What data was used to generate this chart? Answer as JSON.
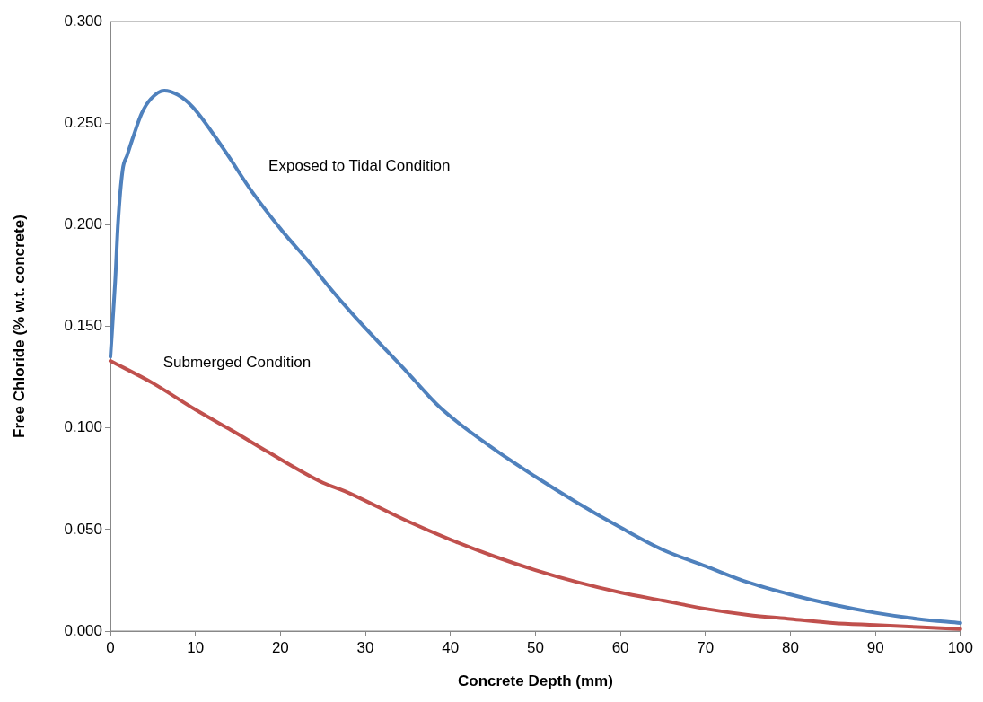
{
  "chart_data": {
    "type": "line",
    "xlabel": "Concrete Depth (mm)",
    "ylabel": "Free Chloride (% w.t. concrete)",
    "xlim": [
      0,
      100
    ],
    "xticks": [
      0,
      10,
      20,
      30,
      40,
      50,
      60,
      70,
      80,
      90,
      100
    ],
    "ylim": [
      0,
      0.3
    ],
    "yticks": [
      {
        "value": 0,
        "label": "0.000"
      },
      {
        "value": 0.05,
        "label": "0.050"
      },
      {
        "value": 0.1,
        "label": "0.100"
      },
      {
        "value": 0.15,
        "label": "0.150"
      },
      {
        "value": 0.2,
        "label": "0.200"
      },
      {
        "value": 0.25,
        "label": "0.250"
      },
      {
        "value": 0.3,
        "label": "0.300"
      }
    ],
    "grid": false,
    "legend": false,
    "marker": "none",
    "line_style": "solid",
    "series": [
      {
        "name": "Exposed to Tidal Condition",
        "color": "#4f81bd",
        "x": [
          0,
          0.56,
          0.9,
          1.44,
          1.96,
          2.66,
          3.7,
          4.77,
          6.34,
          7.9,
          9.67,
          13.2,
          16.7,
          20.2,
          23.7,
          25.4,
          28.7,
          35,
          38.8,
          45,
          50,
          55,
          60,
          65,
          70,
          75,
          80,
          85,
          90,
          95,
          100
        ],
        "values": [
          0.135,
          0.172,
          0.201,
          0.227,
          0.234,
          0.243,
          0.255,
          0.262,
          0.266,
          0.264,
          0.258,
          0.238,
          0.216,
          0.197,
          0.18,
          0.171,
          0.155,
          0.127,
          0.11,
          0.09,
          0.076,
          0.063,
          0.051,
          0.04,
          0.032,
          0.024,
          0.018,
          0.013,
          0.009,
          0.006,
          0.004
        ]
      },
      {
        "name": "Submerged Condition",
        "color": "#c0504d",
        "x": [
          0,
          5,
          10,
          15,
          18.6,
          25,
          27.5,
          35,
          40,
          45,
          50,
          55,
          60,
          65,
          70,
          75,
          80,
          85,
          90,
          95,
          100
        ],
        "values": [
          0.133,
          0.122,
          0.109,
          0.097,
          0.088,
          0.073,
          0.069,
          0.054,
          0.045,
          0.037,
          0.03,
          0.024,
          0.019,
          0.015,
          0.011,
          0.008,
          0.006,
          0.004,
          0.003,
          0.002,
          0.001
        ]
      }
    ]
  }
}
